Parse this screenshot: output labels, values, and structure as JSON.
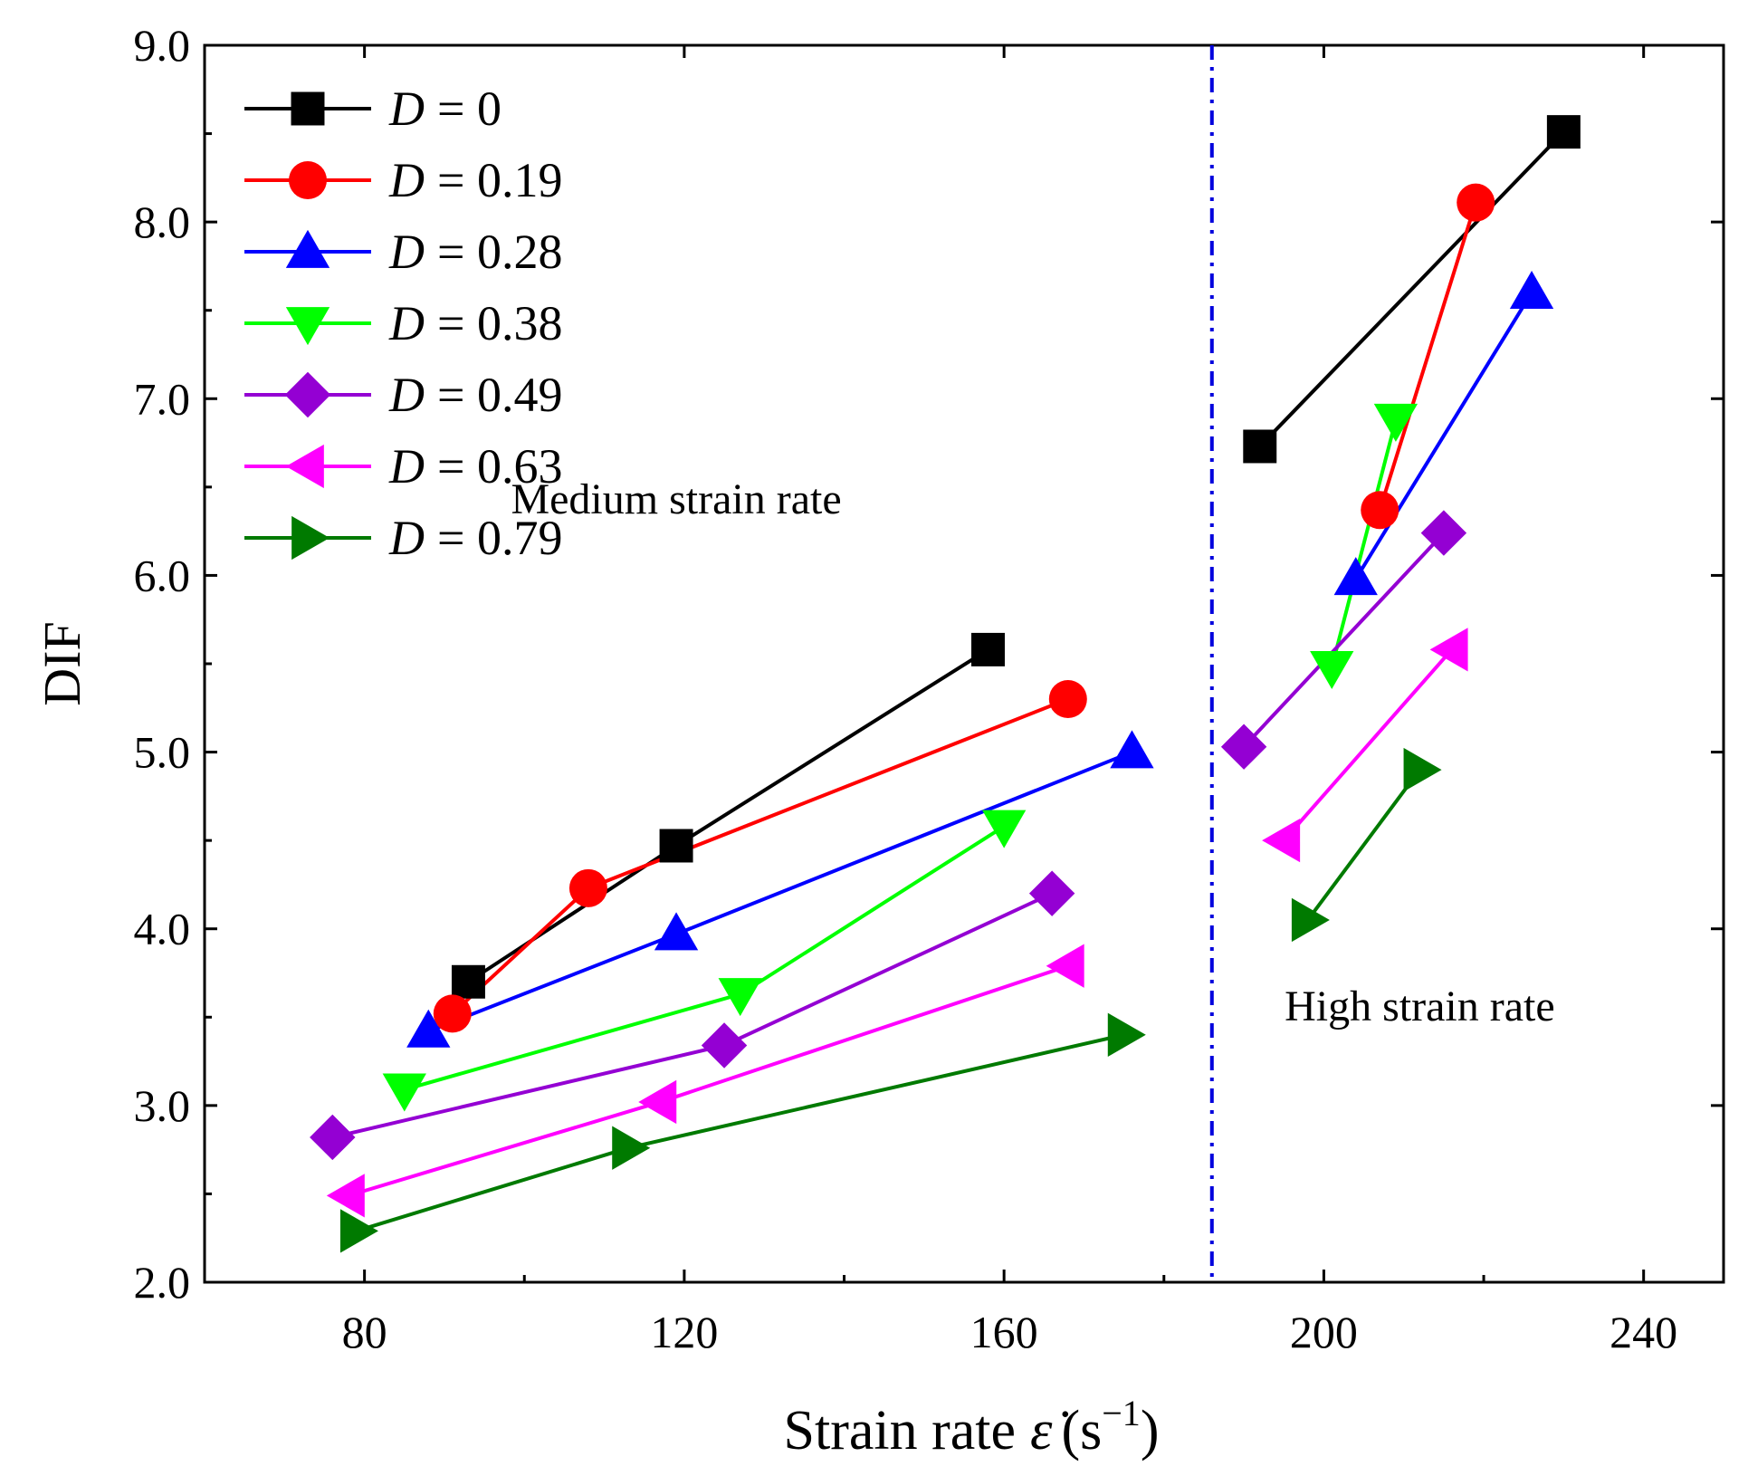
{
  "chart_data": {
    "type": "line",
    "title": "",
    "xlabel": "Strain rate",
    "xlabel_symbol": "ε̇",
    "xlabel_unit": "(s",
    "xlabel_unit_exp": "−1",
    "xlabel_unit_close": ")",
    "ylabel": "DIF",
    "xlim": [
      60,
      250
    ],
    "ylim": [
      2.0,
      9.0
    ],
    "xticks": [
      80,
      120,
      160,
      200,
      240
    ],
    "xtick_labels": [
      "80",
      "120",
      "160",
      "200",
      "240"
    ],
    "yticks": [
      2.0,
      3.0,
      4.0,
      5.0,
      6.0,
      7.0,
      8.0,
      9.0
    ],
    "ytick_labels": [
      "2.0",
      "3.0",
      "4.0",
      "5.0",
      "6.0",
      "7.0",
      "8.0",
      "9.0"
    ],
    "grid": false,
    "legend_position": "top-left",
    "divider": {
      "x": 186,
      "style": "dash-dot",
      "color": "#0000dd"
    },
    "annotations": [
      {
        "text": "Medium strain rate",
        "x": 119,
        "y": 6.35
      },
      {
        "text": "High strain rate",
        "x": 212,
        "y": 3.48
      }
    ],
    "series": [
      {
        "name": "D = 0",
        "label_var": "D",
        "label_value": "= 0",
        "color": "#000000",
        "marker": "square",
        "medium": [
          [
            93,
            3.7
          ],
          [
            119,
            4.47
          ],
          [
            158,
            5.58
          ]
        ],
        "high": [
          [
            192,
            6.73
          ],
          [
            230,
            8.51
          ]
        ]
      },
      {
        "name": "D = 0.19",
        "label_var": "D",
        "label_value": "= 0.19",
        "color": "#ff0000",
        "marker": "circle",
        "medium": [
          [
            91,
            3.52
          ],
          [
            108,
            4.23
          ],
          [
            168,
            5.3
          ]
        ],
        "high": [
          [
            207,
            6.37
          ],
          [
            219,
            8.11
          ]
        ]
      },
      {
        "name": "D = 0.28",
        "label_var": "D",
        "label_value": "= 0.28",
        "color": "#0000ff",
        "marker": "triangle-up",
        "medium": [
          [
            88,
            3.42
          ],
          [
            119,
            3.97
          ],
          [
            176,
            5.0
          ]
        ],
        "high": [
          [
            204,
            5.98
          ],
          [
            226,
            7.6
          ]
        ]
      },
      {
        "name": "D = 0.38",
        "label_var": "D",
        "label_value": "= 0.38",
        "color": "#00ff00",
        "marker": "triangle-down",
        "medium": [
          [
            85,
            3.09
          ],
          [
            127,
            3.63
          ],
          [
            160,
            4.58
          ]
        ],
        "high": [
          [
            201,
            5.48
          ],
          [
            209,
            6.88
          ]
        ]
      },
      {
        "name": "D = 0.49",
        "label_var": "D",
        "label_value": "= 0.49",
        "color": "#9400d3",
        "marker": "diamond",
        "medium": [
          [
            76,
            2.82
          ],
          [
            125,
            3.34
          ],
          [
            166,
            4.2
          ]
        ],
        "high": [
          [
            190,
            5.03
          ],
          [
            215,
            6.24
          ]
        ]
      },
      {
        "name": "D = 0.63",
        "label_var": "D",
        "label_value": "= 0.63",
        "color": "#ff00ff",
        "marker": "triangle-left",
        "medium": [
          [
            78,
            2.49
          ],
          [
            117,
            3.02
          ],
          [
            168,
            3.79
          ]
        ],
        "high": [
          [
            195,
            4.5
          ],
          [
            216,
            5.58
          ]
        ]
      },
      {
        "name": "D = 0.79",
        "label_var": "D",
        "label_value": "= 0.79",
        "color": "#007a00",
        "marker": "triangle-right",
        "medium": [
          [
            79,
            2.29
          ],
          [
            113,
            2.76
          ],
          [
            175,
            3.4
          ]
        ],
        "high": [
          [
            198,
            4.05
          ],
          [
            212,
            4.9
          ]
        ]
      }
    ]
  }
}
